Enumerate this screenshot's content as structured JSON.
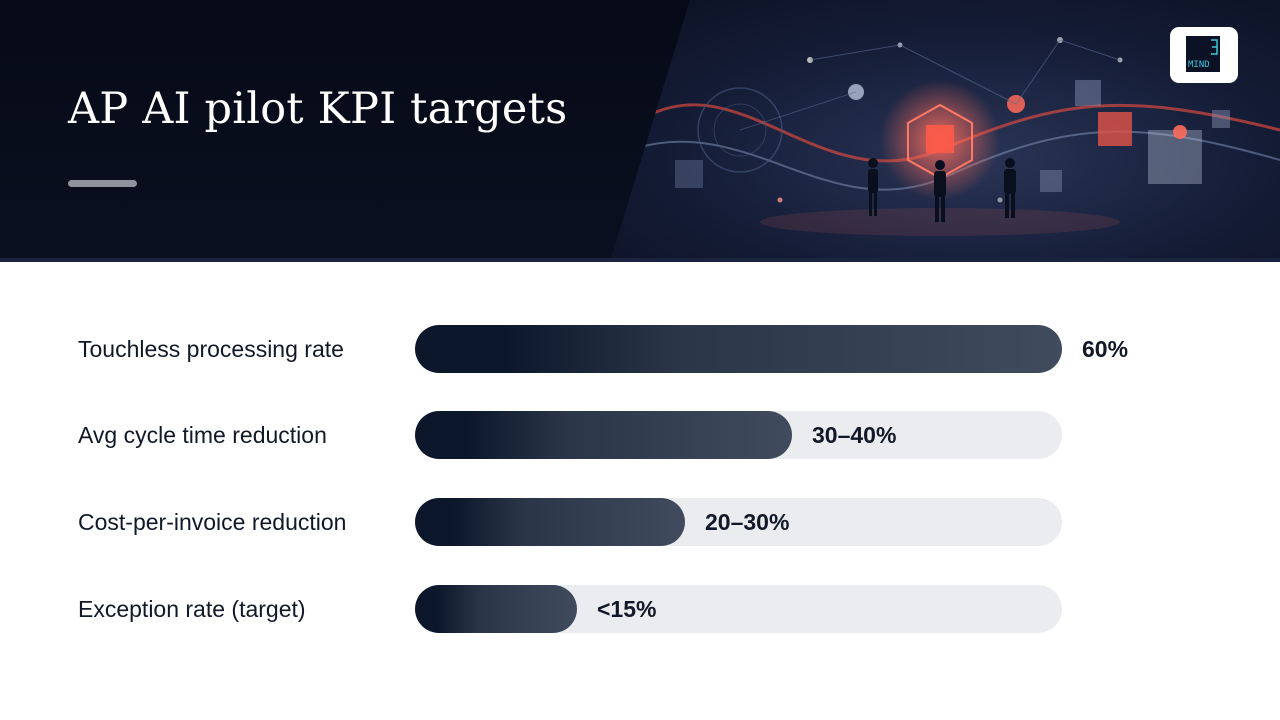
{
  "header": {
    "title": "AP AI pilot KPI targets",
    "background_color": "#0b1122",
    "accent_color": "#f06a5a"
  },
  "logo": {
    "text": "MIND"
  },
  "chart_data": {
    "type": "bar",
    "orientation": "horizontal",
    "categories": [
      "Touchless processing rate",
      "Avg cycle time reduction",
      "Cost-per-invoice reduction",
      "Exception rate (target)"
    ],
    "values": [
      60,
      35,
      25,
      15
    ],
    "value_labels": [
      "60%",
      "30–40%",
      "20–30%",
      "<15%"
    ],
    "xlim": [
      0,
      60
    ],
    "grid": false,
    "bar_color": "#0d172b",
    "track_color": "#ebecef"
  }
}
